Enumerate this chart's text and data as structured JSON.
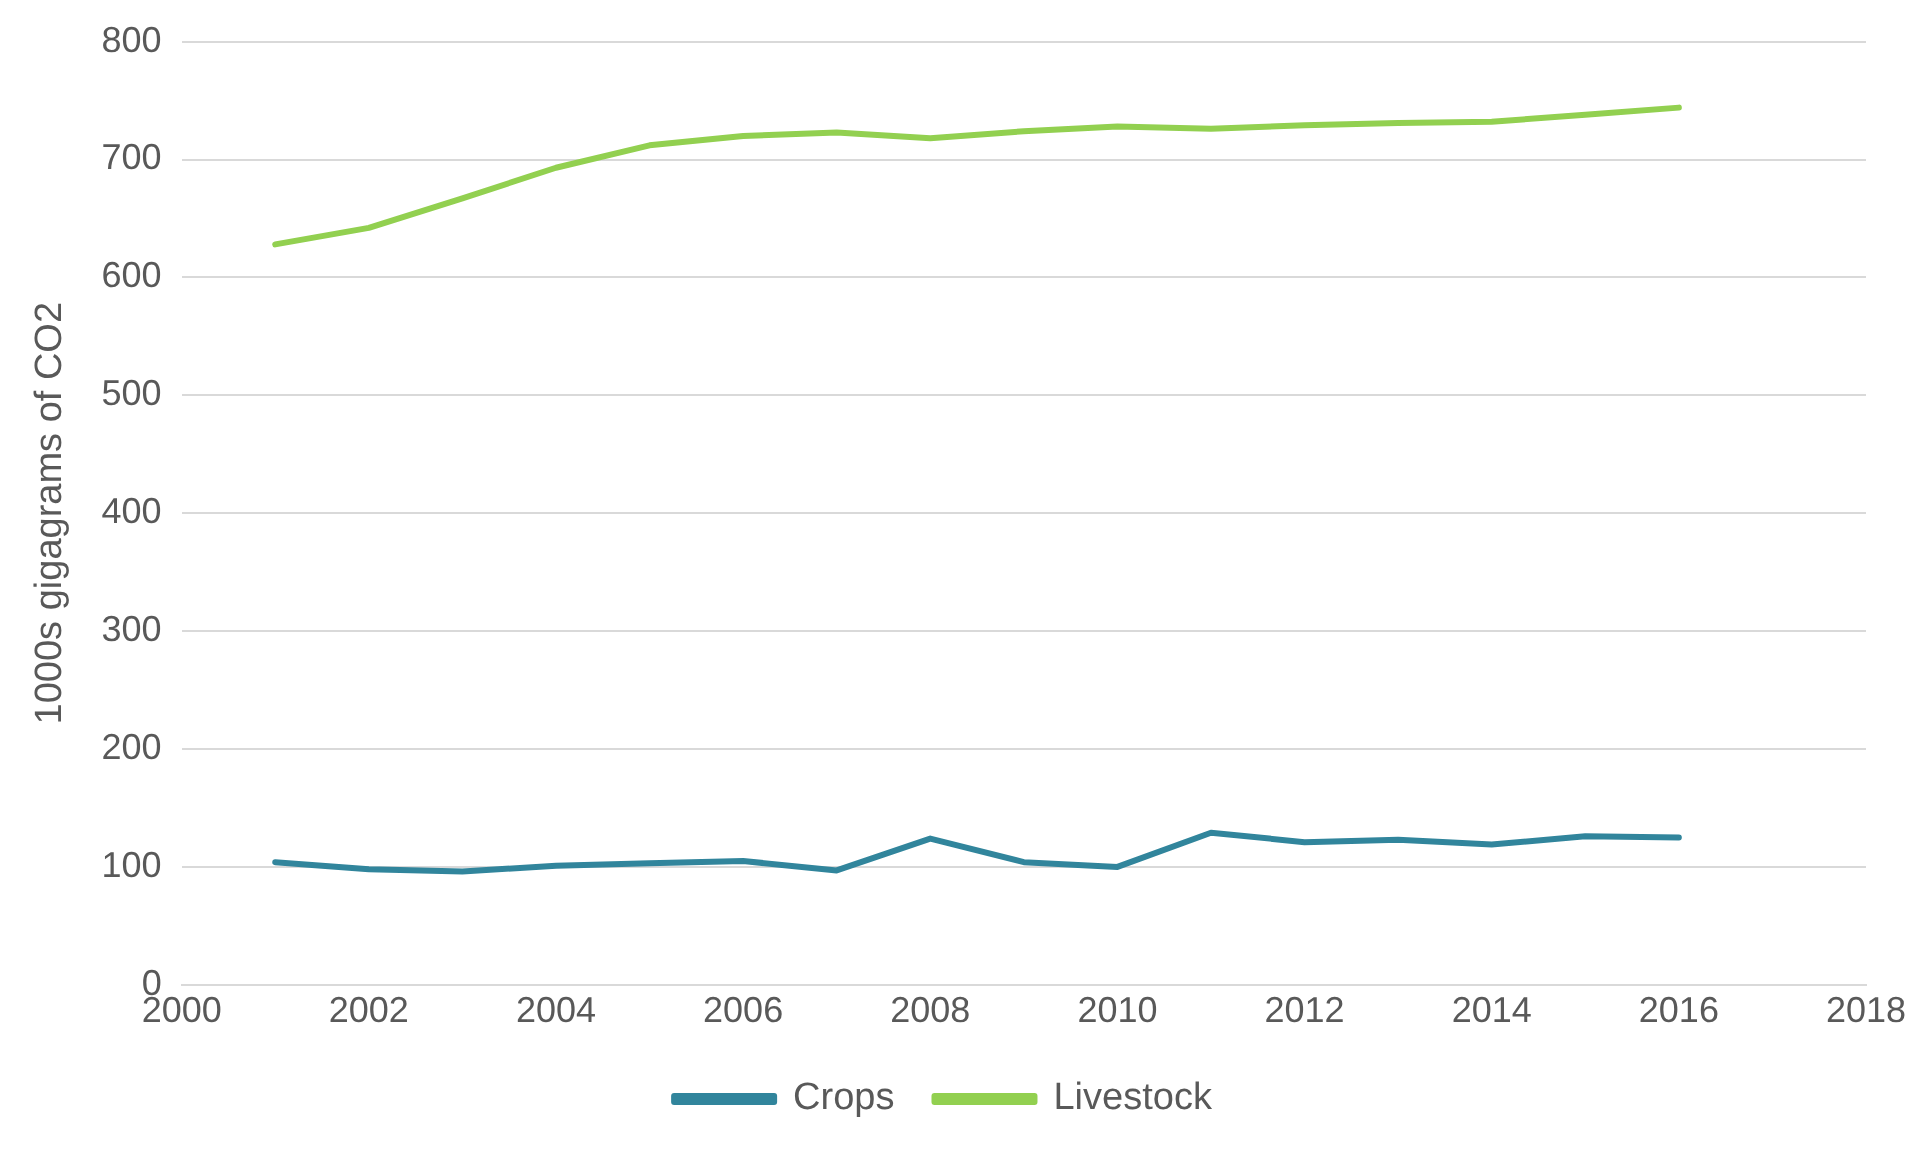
{
  "chart_data": {
    "type": "line",
    "ylabel": "1000s gigagrams of CO2",
    "x": [
      2001,
      2002,
      2003,
      2004,
      2005,
      2006,
      2007,
      2008,
      2009,
      2010,
      2011,
      2012,
      2013,
      2014,
      2015,
      2016
    ],
    "series": [
      {
        "name": "Crops",
        "color": "#31859c",
        "values": [
          104,
          98,
          96,
          101,
          103,
          105,
          97,
          124,
          104,
          100,
          129,
          121,
          123,
          119,
          126,
          125
        ]
      },
      {
        "name": "Livestock",
        "color": "#92d050",
        "values": [
          628,
          642,
          667,
          693,
          712,
          720,
          723,
          718,
          724,
          728,
          726,
          729,
          731,
          732,
          738,
          744
        ]
      }
    ],
    "xlim": [
      2000,
      2018
    ],
    "xticks": [
      2000,
      2002,
      2004,
      2006,
      2008,
      2010,
      2012,
      2014,
      2016,
      2018
    ],
    "ylim": [
      0,
      800
    ],
    "yticks": [
      0,
      100,
      200,
      300,
      400,
      500,
      600,
      700,
      800
    ],
    "grid": "y",
    "legend": "bottom",
    "marker": "none",
    "line_style": "solid"
  }
}
